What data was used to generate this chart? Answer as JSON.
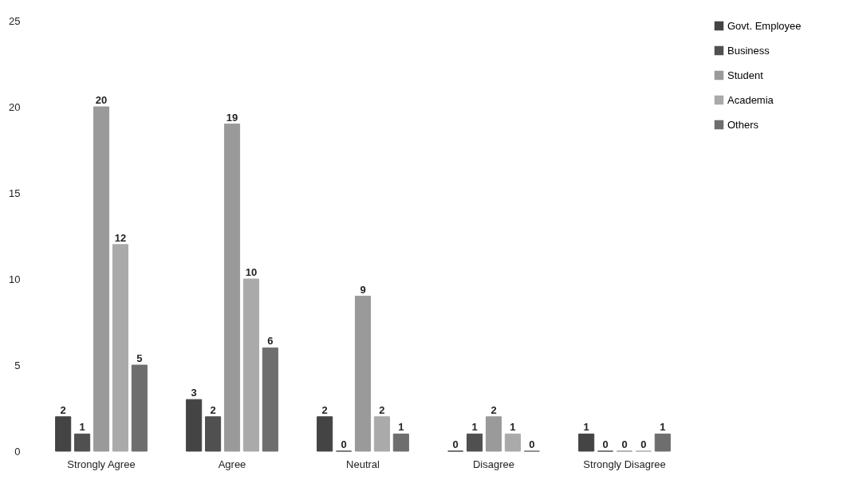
{
  "chart_data": {
    "type": "bar",
    "categories": [
      "Strongly Agree",
      "Agree",
      "Neutral",
      "Disagree",
      "Strongly Disagree"
    ],
    "series": [
      {
        "name": "Govt. Employee",
        "color": "#444444",
        "values": [
          2,
          3,
          2,
          0,
          1
        ]
      },
      {
        "name": "Business",
        "color": "#505050",
        "values": [
          1,
          2,
          0,
          1,
          0
        ]
      },
      {
        "name": "Student",
        "color": "#9a9a9a",
        "values": [
          20,
          19,
          9,
          2,
          0
        ]
      },
      {
        "name": "Academia",
        "color": "#aaaaaa",
        "values": [
          12,
          10,
          2,
          1,
          0
        ]
      },
      {
        "name": "Others",
        "color": "#6e6e6e",
        "values": [
          5,
          6,
          1,
          0,
          1
        ]
      }
    ],
    "ylim": [
      0,
      25
    ],
    "yticks": [
      0,
      5,
      10,
      15,
      20,
      25
    ],
    "grid": false,
    "legend": "right",
    "data_labels": true
  }
}
